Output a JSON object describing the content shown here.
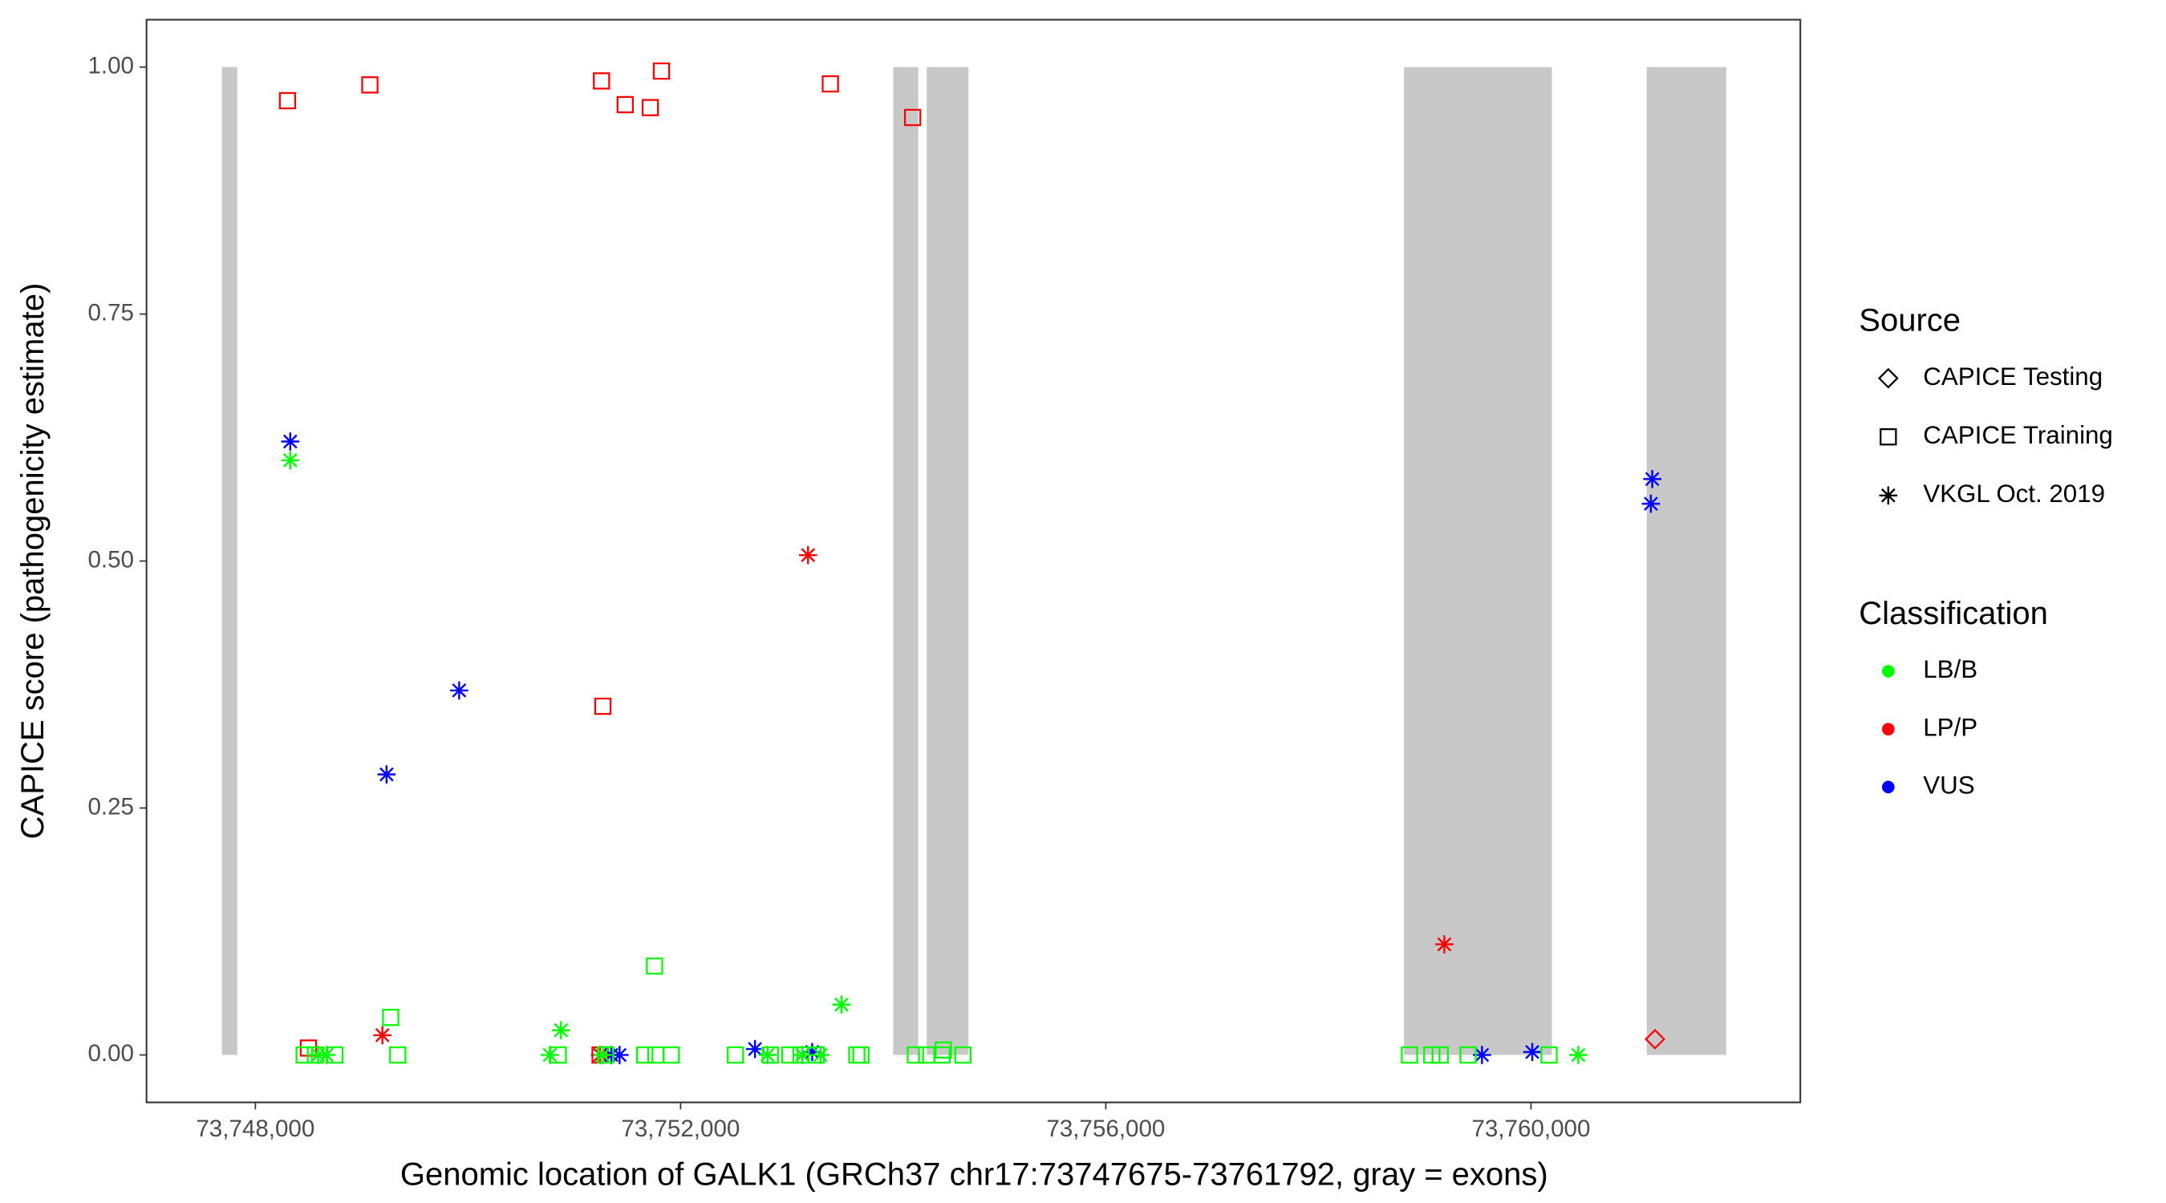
{
  "chart_data": {
    "type": "scatter",
    "xlabel": "Genomic location of GALK1 (GRCh37 chr17:73747675-73761792, gray = exons)",
    "ylabel": "CAPICE score (pathogenicity estimate)",
    "xlim": [
      73746976,
      73762534
    ],
    "ylim": [
      -0.048,
      1.048
    ],
    "xticks": [
      {
        "value": 73748000,
        "label": "73,748,000"
      },
      {
        "value": 73752000,
        "label": "73,752,000"
      },
      {
        "value": 73756000,
        "label": "73,756,000"
      },
      {
        "value": 73760000,
        "label": "73,760,000"
      }
    ],
    "yticks": [
      {
        "value": 0,
        "label": "0.00"
      },
      {
        "value": 0.25,
        "label": "0.25"
      },
      {
        "value": 0.5,
        "label": "0.50"
      },
      {
        "value": 0.75,
        "label": "0.75"
      },
      {
        "value": 1,
        "label": "1.00"
      }
    ],
    "exon_color": "#c8c8c8",
    "exons": [
      [
        73747685,
        73747829
      ],
      [
        73754000,
        73754236
      ],
      [
        73754315,
        73754709
      ],
      [
        73758805,
        73760197
      ],
      [
        73761089,
        73761837
      ]
    ],
    "legend_source": {
      "title": "Source",
      "items": [
        {
          "name": "CAPICE Testing",
          "shape": "diamond"
        },
        {
          "name": "CAPICE Training",
          "shape": "square"
        },
        {
          "name": "VKGL Oct. 2019",
          "shape": "asterisk"
        }
      ]
    },
    "legend_class": {
      "title": "Classification",
      "items": [
        {
          "name": "LB/B",
          "color": "#00ff00"
        },
        {
          "name": "LP/P",
          "color": "#ff0000"
        },
        {
          "name": "VUS",
          "color": "#0000ff"
        }
      ]
    },
    "series": [
      {
        "source": "CAPICE Training",
        "classification": "LP/P",
        "x": [
          73748302,
          73749077,
          73751256,
          73751479,
          73751715,
          73751820,
          73753409,
          73754183,
          73751269,
          73748499,
          73751243
        ],
        "y": [
          0.966,
          0.982,
          0.986,
          0.962,
          0.959,
          0.996,
          0.983,
          0.949,
          0.353,
          0.007,
          0.0
        ]
      },
      {
        "source": "CAPICE Testing",
        "classification": "LP/P",
        "x": [
          73761167
        ],
        "y": [
          0.016
        ]
      },
      {
        "source": "VKGL Oct. 2019",
        "classification": "LP/P",
        "x": [
          73749195,
          73753199,
          73759185,
          73751243
        ],
        "y": [
          0.02,
          0.506,
          0.112,
          0.0
        ]
      },
      {
        "source": "VKGL Oct. 2019",
        "classification": "VUS",
        "x": [
          73748328,
          73749234,
          73749917,
          73761141,
          73761128,
          73751348,
          73751426,
          73752700,
          73753238,
          73759539,
          73760012
        ],
        "y": [
          0.621,
          0.284,
          0.369,
          0.583,
          0.558,
          0.0,
          0.0,
          0.006,
          0.003,
          0.0,
          0.003
        ]
      },
      {
        "source": "VKGL Oct. 2019",
        "classification": "LB/B",
        "x": [
          73748328,
          73750875,
          73753514,
          73748591,
          73748670,
          73750770,
          73751269,
          73752818,
          73753146,
          73753317,
          73760445
        ],
        "y": [
          0.602,
          0.025,
          0.051,
          0.0,
          0.0,
          0.0,
          0.0,
          0.0,
          0.0,
          0.0,
          0.0
        ]
      },
      {
        "source": "CAPICE Training",
        "classification": "LB/B",
        "x": [
          73751755,
          73749273,
          73748459,
          73748565,
          73748748,
          73749339,
          73750849,
          73751295,
          73751663,
          73751768,
          73751912,
          73752516,
          73752844,
          73753028,
          73753133,
          73753277,
          73753658,
          73753697,
          73754209,
          73754315,
          73754459,
          73754656,
          73758857,
          73759067,
          73759146,
          73759408,
          73760170,
          73754472
        ],
        "y": [
          0.09,
          0.038,
          0,
          0,
          0,
          0,
          0,
          0,
          0,
          0,
          0,
          0,
          0,
          0,
          0,
          0,
          0,
          0,
          0,
          0,
          0,
          0,
          0,
          0,
          0,
          0,
          0,
          0.005
        ]
      }
    ]
  }
}
